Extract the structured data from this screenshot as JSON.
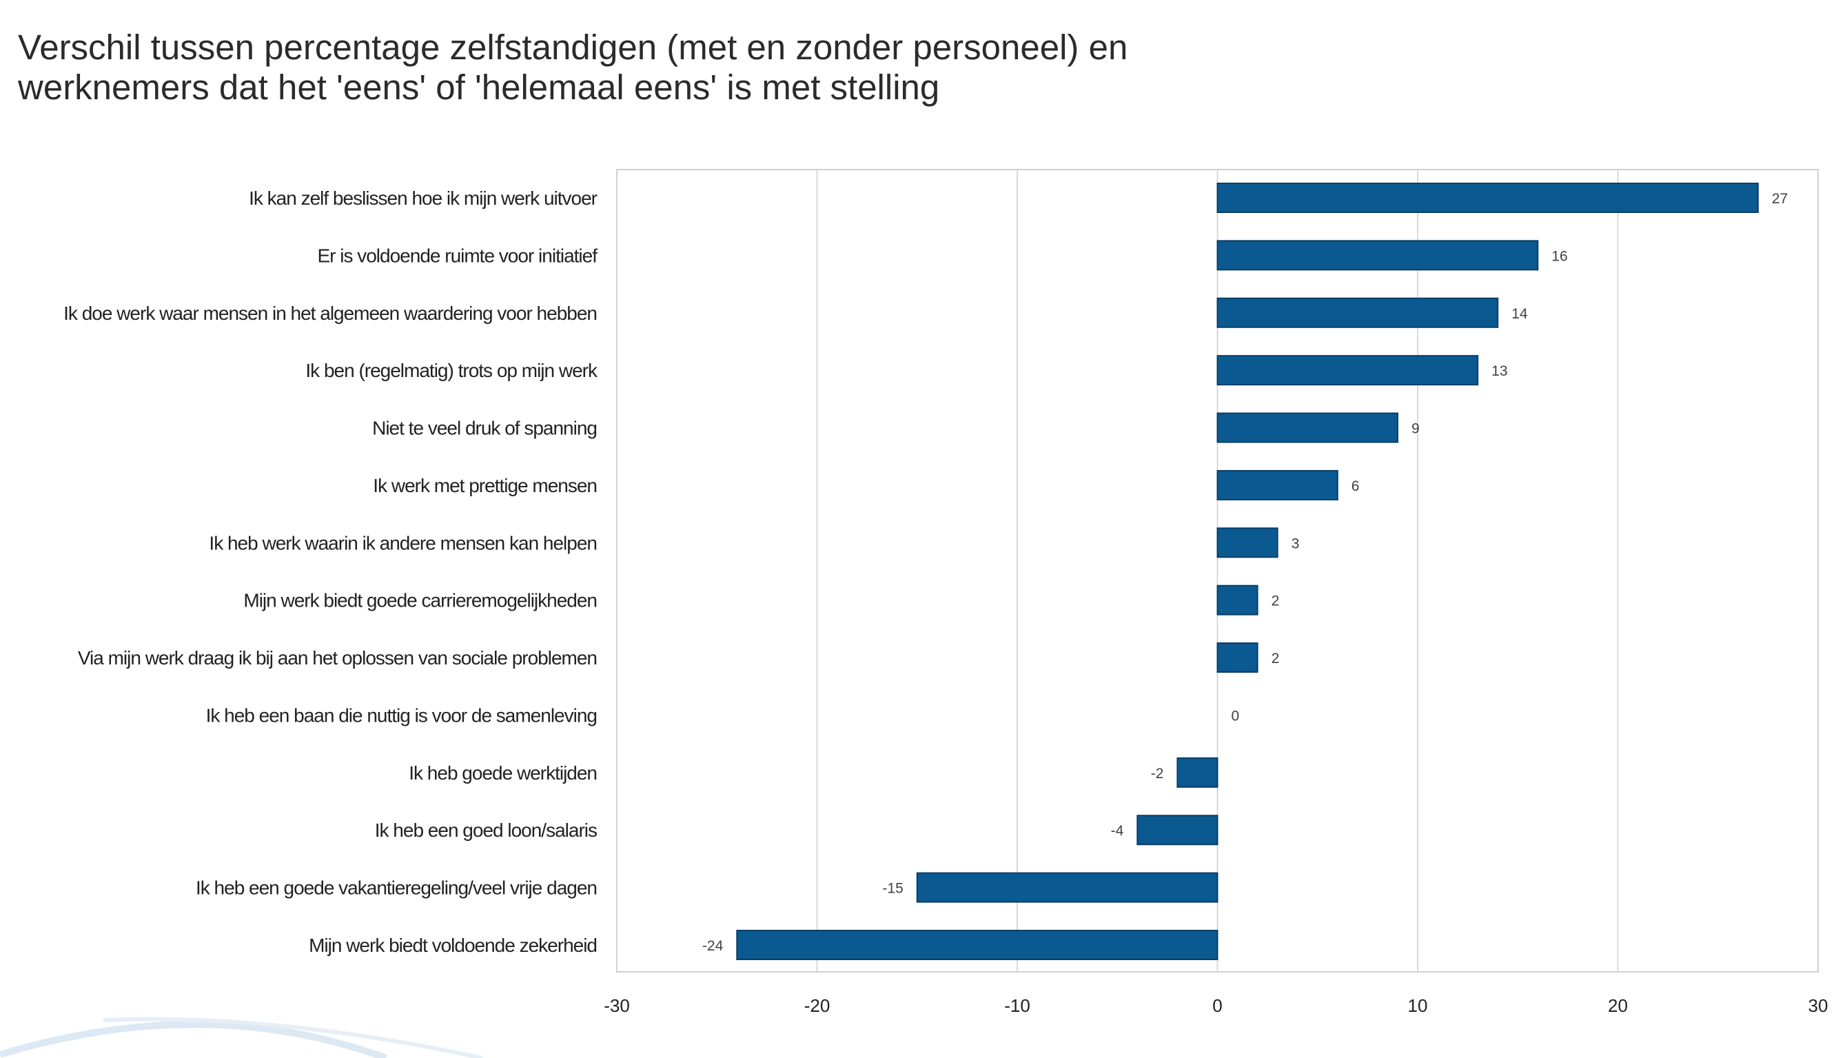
{
  "chart_data": {
    "type": "bar",
    "orientation": "horizontal",
    "title": [
      "Verschil tussen percentage zelfstandigen (met en zonder personeel) en",
      "werknemers dat het 'eens' of 'helemaal eens' is met stelling"
    ],
    "categories": [
      "Ik kan zelf beslissen hoe ik mijn werk uitvoer",
      "Er is voldoende ruimte voor initiatief",
      "Ik doe werk waar mensen in het algemeen waardering voor hebben",
      "Ik ben (regelmatig) trots op mijn werk",
      "Niet te veel druk of spanning",
      "Ik werk met prettige mensen",
      "Ik heb werk waarin ik andere mensen kan helpen",
      "Mijn werk biedt goede carrieremogelijkheden",
      "Via mijn werk draag ik bij aan het oplossen van sociale problemen",
      "Ik heb een baan die nuttig is voor de samenleving",
      "Ik heb goede werktijden",
      "Ik heb een goed loon/salaris",
      "Ik heb een goede vakantieregeling/veel vrije dagen",
      "Mijn werk biedt voldoende zekerheid"
    ],
    "values": [
      27,
      16,
      14,
      13,
      9,
      6,
      3,
      2,
      2,
      0,
      -2,
      -4,
      -15,
      -24
    ],
    "xlim": [
      -30,
      30
    ],
    "xticks": [
      -30,
      -20,
      -10,
      0,
      10,
      20,
      30
    ],
    "grid": "vertical",
    "bar_color": "#0a5a91",
    "bar_edge_color": "#0b3d66",
    "data_labels": true
  }
}
